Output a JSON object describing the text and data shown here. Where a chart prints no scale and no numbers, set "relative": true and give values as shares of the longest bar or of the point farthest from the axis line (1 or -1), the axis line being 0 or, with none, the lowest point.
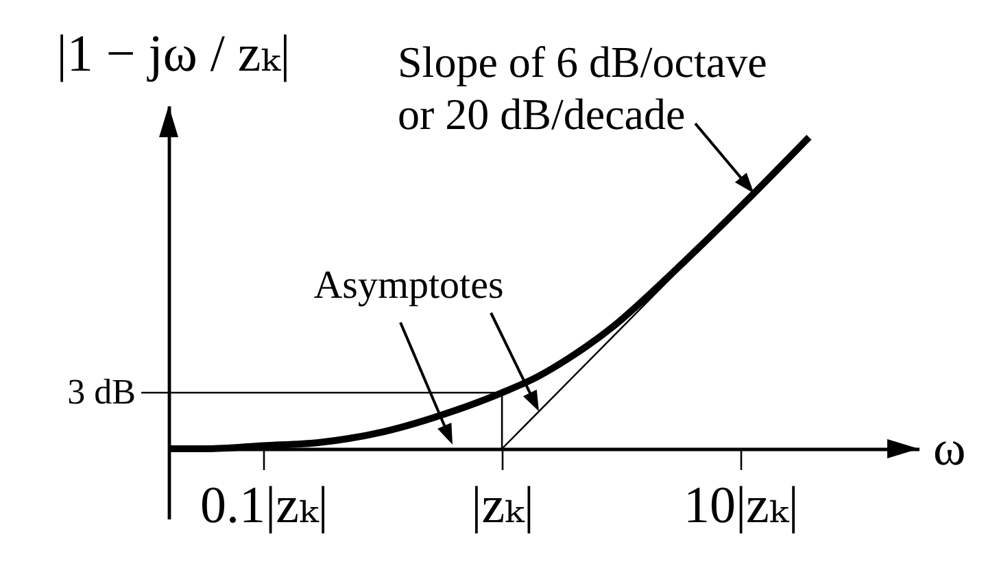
{
  "chart_data": {
    "type": "line",
    "relative": true,
    "log": "x",
    "xlabel": "ω",
    "ylabel": "|1 − jω / zₖ|",
    "xlim": [
      0.04,
      56
    ],
    "xticks": [
      {
        "value": 0.1,
        "label": "0.1|zₖ|"
      },
      {
        "value": 1,
        "label": "|zₖ|"
      },
      {
        "value": 10,
        "label": "10|zₖ|"
      }
    ],
    "series": [
      {
        "color": "#000000",
        "x": [
          0.04,
          0.058,
          0.1,
          0.17,
          0.32,
          0.62,
          1,
          1.4,
          1.9,
          2.9,
          4.5,
          7,
          11.4,
          19.4
        ],
        "values": [
          0,
          0,
          0.01,
          0.02,
          0.055,
          0.12,
          0.18,
          0.23,
          0.29,
          0.39,
          0.52,
          0.66,
          0.82,
          1
        ]
      },
      {
        "color": "#000000",
        "x": [
          1,
          16.9
        ],
        "values": [
          0,
          0.95
        ]
      }
    ],
    "ref_lines": [
      {
        "axis": "y",
        "value": 0.18,
        "label": "3 dB"
      },
      {
        "axis": "x",
        "value": 1
      }
    ],
    "annotations": [
      {
        "text": "Slope of 6 dB/octave or 20 dB/decade",
        "x": 11.4,
        "y": 0.82
      },
      "Asymptotes"
    ]
  }
}
